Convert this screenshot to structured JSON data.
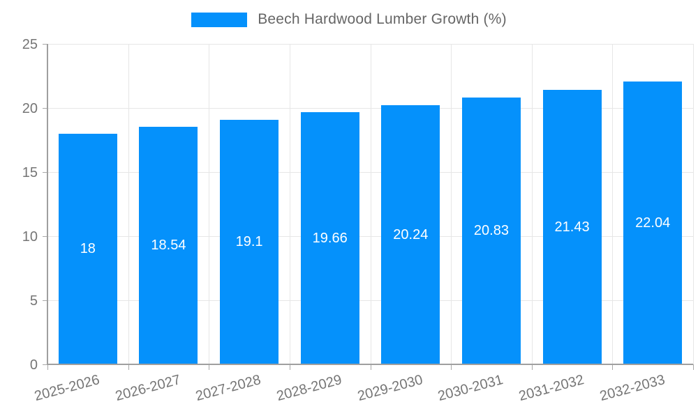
{
  "legend": {
    "label": "Beech Hardwood Lumber Growth (%)",
    "swatch_color": "#0591fb"
  },
  "chart_data": {
    "type": "bar",
    "title": "Beech Hardwood Lumber Growth (%)",
    "categories": [
      "2025-2026",
      "2026-2027",
      "2027-2028",
      "2028-2029",
      "2029-2030",
      "2030-2031",
      "2031-2032",
      "2032-2033"
    ],
    "values": [
      18,
      18.54,
      19.1,
      19.66,
      20.24,
      20.83,
      21.43,
      22.04
    ],
    "value_labels": [
      "18",
      "18.54",
      "19.1",
      "19.66",
      "20.24",
      "20.83",
      "21.43",
      "22.04"
    ],
    "xlabel": "",
    "ylabel": "",
    "ylim": [
      0,
      25
    ],
    "yticks": [
      0,
      5,
      10,
      15,
      20,
      25
    ],
    "grid": true,
    "legend_position": "top",
    "bar_color": "#0591fb",
    "value_label_color": "#ffffff",
    "tick_label_color": "#757575",
    "gridline_color": "#e6e6e6",
    "axis_color": "#9f9f9f"
  }
}
